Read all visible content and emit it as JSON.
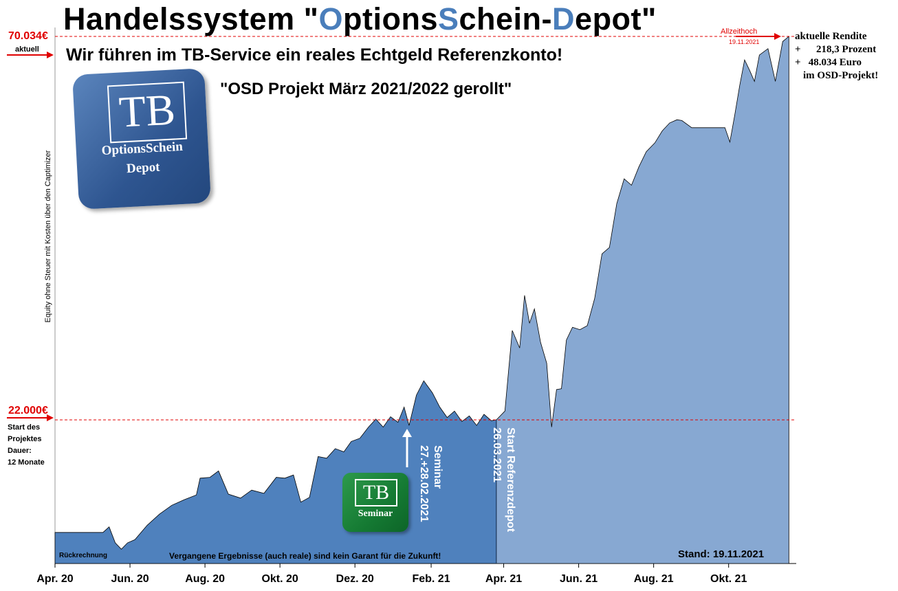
{
  "title": {
    "p1": "Handelssystem \"",
    "o": "O",
    "p2": "ptions",
    "s": "S",
    "p3": "chein-",
    "d": "D",
    "p4": "epot\""
  },
  "subtitle": "Wir führen im TB-Service ein reales Echtgeld Referenzkonto!",
  "project_label": "\"OSD Projekt März 2021/2022 gerollt\"",
  "y_axis_label": "Equity ohne Steuer mit Kosten über den Captimizer",
  "current_value": {
    "value": "70.034€",
    "label": "aktuell"
  },
  "start_value": {
    "value": "22.000€",
    "label_lines": [
      "Start des",
      "Projektes",
      "Dauer:",
      "12 Monate"
    ]
  },
  "all_time_high": {
    "label": "Allzeithoch",
    "date": "19.11.2021"
  },
  "rendite": {
    "line1": "aktuelle Rendite",
    "line2": "+      218,3 Prozent",
    "line3": "+   48.034 Euro",
    "line4": "im OSD-Projekt!"
  },
  "stand": "Stand: 19.11.2021",
  "rueckrechnung": "Rückrechnung",
  "disclaimer": "Vergangene Ergebnisse (auch reale) sind kein Garant für die Zukunft!",
  "seminar_note": {
    "line1": "Seminar",
    "line2": "27.+28.02.2021"
  },
  "referenz_note": {
    "line1": "Start Referenzdepot",
    "line2": "26.03.2021"
  },
  "logo_main": {
    "tb": "TB",
    "line1": "OptionsSchein",
    "line2": "Depot"
  },
  "logo_seminar": {
    "tb": "TB",
    "line1": "Seminar"
  },
  "colors": {
    "backtest_fill": "#4f81bd",
    "live_fill": "#87a8d2",
    "red_marker": "#e00000",
    "logo_blue": "#2e5590",
    "logo_green": "#157a33"
  },
  "chart_data": {
    "type": "area",
    "x_ticks": [
      "Apr. 20",
      "Jun. 20",
      "Aug. 20",
      "Okt. 20",
      "Dez. 20",
      "Feb. 21",
      "Apr. 21",
      "Jun. 21",
      "Aug. 21",
      "Okt. 21"
    ],
    "x_tick_dates": [
      "2020-04-01",
      "2020-06-01",
      "2020-08-01",
      "2020-10-01",
      "2020-12-01",
      "2021-02-01",
      "2021-04-01",
      "2021-06-01",
      "2021-08-01",
      "2021-10-01"
    ],
    "reference_lines": [
      {
        "value": 70034,
        "label": "70.034€"
      },
      {
        "value": 22000,
        "label": "22.000€"
      }
    ],
    "ylim": [
      5000,
      73000
    ],
    "series": [
      {
        "name": "Rückrechnung",
        "color": "#4f81bd",
        "points": [
          [
            "2020-04-01",
            7900
          ],
          [
            "2020-05-10",
            7900
          ],
          [
            "2020-05-15",
            8600
          ],
          [
            "2020-05-20",
            6600
          ],
          [
            "2020-05-25",
            5800
          ],
          [
            "2020-05-30",
            6600
          ],
          [
            "2020-06-05",
            7000
          ],
          [
            "2020-06-15",
            8800
          ],
          [
            "2020-06-25",
            10200
          ],
          [
            "2020-07-05",
            11300
          ],
          [
            "2020-07-15",
            12000
          ],
          [
            "2020-07-25",
            12600
          ],
          [
            "2020-07-28",
            14700
          ],
          [
            "2020-08-05",
            14800
          ],
          [
            "2020-08-12",
            15600
          ],
          [
            "2020-08-20",
            12700
          ],
          [
            "2020-08-30",
            12200
          ],
          [
            "2020-09-08",
            13200
          ],
          [
            "2020-09-18",
            12800
          ],
          [
            "2020-09-28",
            14800
          ],
          [
            "2020-10-05",
            14700
          ],
          [
            "2020-10-12",
            15100
          ],
          [
            "2020-10-18",
            11700
          ],
          [
            "2020-10-25",
            12300
          ],
          [
            "2020-11-01",
            17400
          ],
          [
            "2020-11-08",
            17200
          ],
          [
            "2020-11-15",
            18400
          ],
          [
            "2020-11-22",
            18000
          ],
          [
            "2020-11-28",
            19300
          ],
          [
            "2020-12-05",
            19700
          ],
          [
            "2020-12-12",
            21100
          ],
          [
            "2020-12-18",
            22100
          ],
          [
            "2020-12-24",
            21100
          ],
          [
            "2020-12-30",
            22400
          ],
          [
            "2021-01-05",
            21700
          ],
          [
            "2021-01-10",
            23600
          ],
          [
            "2021-01-14",
            21300
          ],
          [
            "2021-01-20",
            25100
          ],
          [
            "2021-01-26",
            26900
          ],
          [
            "2021-02-02",
            25400
          ],
          [
            "2021-02-08",
            23600
          ],
          [
            "2021-02-14",
            22300
          ],
          [
            "2021-02-20",
            23100
          ],
          [
            "2021-02-26",
            21800
          ],
          [
            "2021-03-04",
            22500
          ],
          [
            "2021-03-10",
            21300
          ],
          [
            "2021-03-16",
            22700
          ],
          [
            "2021-03-22",
            21900
          ],
          [
            "2021-03-26",
            22000
          ]
        ]
      },
      {
        "name": "Referenzdepot",
        "color": "#87a8d2",
        "points": [
          [
            "2021-03-26",
            22000
          ],
          [
            "2021-04-02",
            23100
          ],
          [
            "2021-04-08",
            33200
          ],
          [
            "2021-04-14",
            31000
          ],
          [
            "2021-04-18",
            37600
          ],
          [
            "2021-04-22",
            34100
          ],
          [
            "2021-04-26",
            35900
          ],
          [
            "2021-05-01",
            31700
          ],
          [
            "2021-05-06",
            29100
          ],
          [
            "2021-05-10",
            21100
          ],
          [
            "2021-05-14",
            25800
          ],
          [
            "2021-05-18",
            25900
          ],
          [
            "2021-05-22",
            32000
          ],
          [
            "2021-05-27",
            33600
          ],
          [
            "2021-06-02",
            33300
          ],
          [
            "2021-06-08",
            33800
          ],
          [
            "2021-06-14",
            37200
          ],
          [
            "2021-06-20",
            42800
          ],
          [
            "2021-06-26",
            43600
          ],
          [
            "2021-07-02",
            49100
          ],
          [
            "2021-07-08",
            52200
          ],
          [
            "2021-07-14",
            51400
          ],
          [
            "2021-07-20",
            53700
          ],
          [
            "2021-07-26",
            55600
          ],
          [
            "2021-08-02",
            56700
          ],
          [
            "2021-08-08",
            58200
          ],
          [
            "2021-08-14",
            59200
          ],
          [
            "2021-08-20",
            59600
          ],
          [
            "2021-08-24",
            59500
          ],
          [
            "2021-09-01",
            58600
          ],
          [
            "2021-09-10",
            58600
          ],
          [
            "2021-09-18",
            58600
          ],
          [
            "2021-09-28",
            58600
          ],
          [
            "2021-10-02",
            56800
          ],
          [
            "2021-10-06",
            60200
          ],
          [
            "2021-10-10",
            63900
          ],
          [
            "2021-10-14",
            67100
          ],
          [
            "2021-10-18",
            65800
          ],
          [
            "2021-10-22",
            64400
          ],
          [
            "2021-10-26",
            67700
          ],
          [
            "2021-11-02",
            68500
          ],
          [
            "2021-11-08",
            64400
          ],
          [
            "2021-11-14",
            69400
          ],
          [
            "2021-11-19",
            70034
          ]
        ]
      }
    ]
  }
}
